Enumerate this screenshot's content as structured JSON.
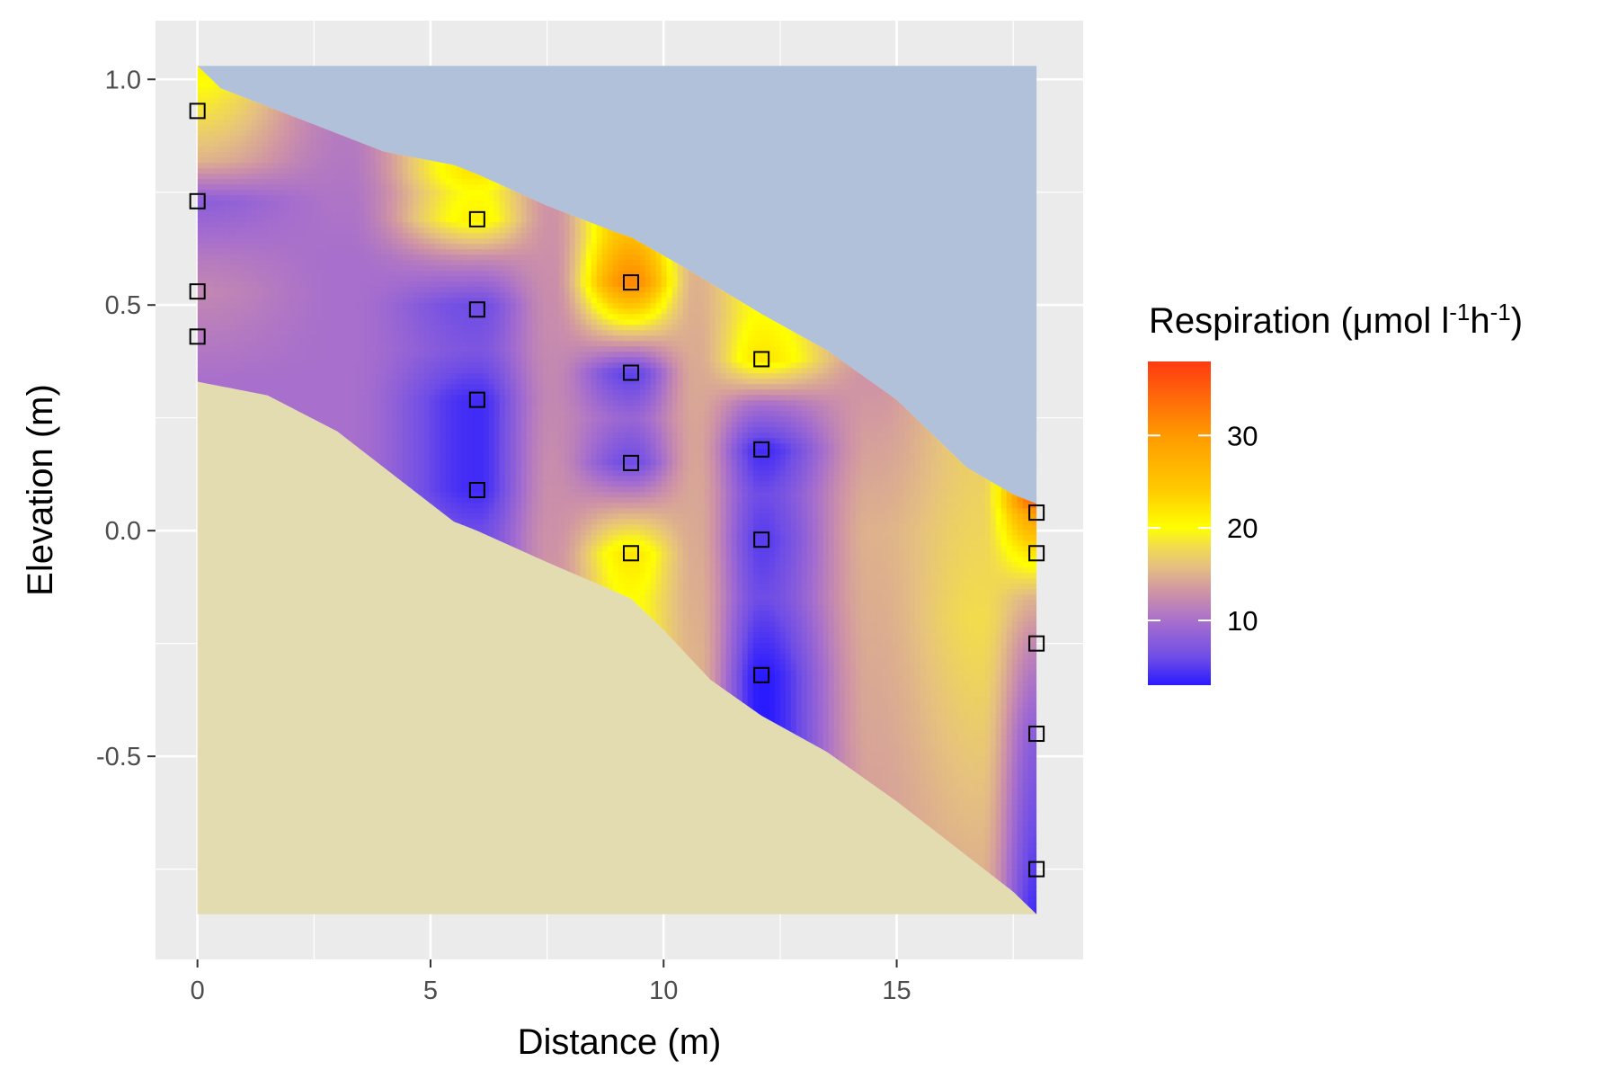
{
  "chart_data": {
    "type": "heatmap",
    "title": "",
    "xlabel": "Distance (m)",
    "ylabel": "Elevation (m)",
    "xlim": [
      -0.9,
      19
    ],
    "ylim": [
      -0.95,
      1.13
    ],
    "x_ticks": [
      0,
      5,
      10,
      15
    ],
    "x_tick_labels": [
      "0",
      "5",
      "10",
      "15"
    ],
    "y_ticks": [
      -0.5,
      0.0,
      0.5,
      1.0
    ],
    "y_tick_labels": [
      "-0.5",
      "0.0",
      "0.5",
      "1.0"
    ],
    "grid": true,
    "legend": {
      "title": "Respiration (μmol l",
      "title_sup1": "-1",
      "title_mid": "h",
      "title_sup2": "-1",
      "title_end": ")",
      "position": "right",
      "range": [
        3,
        38
      ],
      "ticks": [
        10,
        20,
        30
      ],
      "tick_labels": [
        "10",
        "20",
        "30"
      ],
      "colors": [
        [
          3,
          "#2a1bff"
        ],
        [
          6,
          "#6f4de6"
        ],
        [
          10,
          "#a86fcc"
        ],
        [
          13,
          "#cf93a6"
        ],
        [
          16,
          "#e6c27e"
        ],
        [
          18,
          "#f2dc4c"
        ],
        [
          20,
          "#ffff00"
        ],
        [
          24,
          "#ffcc00"
        ],
        [
          30,
          "#ff9a00"
        ],
        [
          38,
          "#ff3a12"
        ]
      ]
    },
    "water_color": "#b0c1d9",
    "sediment_color": "#e3dcb0",
    "panel_color": "#ebebeb",
    "surface_profile": [
      [
        0,
        1.03
      ],
      [
        0.5,
        0.98
      ],
      [
        2,
        0.92
      ],
      [
        4,
        0.84
      ],
      [
        5.5,
        0.81
      ],
      [
        6,
        0.79
      ],
      [
        7.5,
        0.72
      ],
      [
        9,
        0.66
      ],
      [
        9.3,
        0.65
      ],
      [
        10.5,
        0.58
      ],
      [
        12.1,
        0.48
      ],
      [
        13.5,
        0.4
      ],
      [
        15,
        0.29
      ],
      [
        16.5,
        0.14
      ],
      [
        17.5,
        0.08
      ],
      [
        18,
        0.06
      ]
    ],
    "bottom_profile": [
      [
        0,
        0.33
      ],
      [
        1.5,
        0.3
      ],
      [
        3,
        0.22
      ],
      [
        4.5,
        0.1
      ],
      [
        5.5,
        0.02
      ],
      [
        6,
        0.0
      ],
      [
        7.5,
        -0.07
      ],
      [
        9.3,
        -0.15
      ],
      [
        10,
        -0.22
      ],
      [
        11,
        -0.33
      ],
      [
        12.1,
        -0.41
      ],
      [
        13.5,
        -0.49
      ],
      [
        15,
        -0.6
      ],
      [
        16.5,
        -0.72
      ],
      [
        17.5,
        -0.8
      ],
      [
        18,
        -0.85
      ]
    ],
    "plot_bottom": -0.85,
    "plot_top": 1.03,
    "plot_x_max": 18,
    "columns": [
      {
        "x": 0,
        "value_profile": [
          [
            1.03,
            21
          ],
          [
            0.92,
            18
          ],
          [
            0.82,
            15
          ],
          [
            0.73,
            8
          ],
          [
            0.6,
            11
          ],
          [
            0.53,
            12
          ],
          [
            0.43,
            11
          ],
          [
            0.33,
            10
          ]
        ]
      },
      {
        "x": 3.2,
        "value_profile": [
          [
            0.88,
            11
          ],
          [
            0.6,
            10
          ],
          [
            0.3,
            10
          ]
        ]
      },
      {
        "x": 6,
        "value_profile": [
          [
            0.79,
            22
          ],
          [
            0.75,
            20
          ],
          [
            0.69,
            21
          ],
          [
            0.6,
            12
          ],
          [
            0.5,
            6
          ],
          [
            0.4,
            7
          ],
          [
            0.29,
            4
          ],
          [
            0.15,
            4
          ],
          [
            0.09,
            4
          ],
          [
            0.0,
            6
          ]
        ]
      },
      {
        "x": 7.6,
        "value_profile": [
          [
            0.72,
            13
          ],
          [
            0.3,
            12
          ],
          [
            -0.07,
            13
          ]
        ]
      },
      {
        "x": 9.3,
        "value_profile": [
          [
            0.65,
            26
          ],
          [
            0.55,
            32
          ],
          [
            0.45,
            18
          ],
          [
            0.35,
            5
          ],
          [
            0.25,
            9
          ],
          [
            0.15,
            6
          ],
          [
            0.05,
            14
          ],
          [
            -0.05,
            22
          ],
          [
            -0.15,
            20
          ]
        ]
      },
      {
        "x": 10.7,
        "value_profile": [
          [
            0.57,
            15
          ],
          [
            0.2,
            14
          ],
          [
            -0.27,
            15
          ]
        ]
      },
      {
        "x": 12.1,
        "value_profile": [
          [
            0.48,
            20
          ],
          [
            0.38,
            22
          ],
          [
            0.28,
            10
          ],
          [
            0.18,
            4
          ],
          [
            0.08,
            6
          ],
          [
            -0.02,
            5
          ],
          [
            -0.15,
            6
          ],
          [
            -0.32,
            3
          ],
          [
            -0.41,
            3
          ]
        ]
      },
      {
        "x": 14.5,
        "value_profile": [
          [
            0.33,
            13
          ],
          [
            0.0,
            15
          ],
          [
            -0.55,
            14
          ]
        ]
      },
      {
        "x": 16.8,
        "value_profile": [
          [
            0.12,
            17
          ],
          [
            -0.2,
            18
          ],
          [
            -0.74,
            15
          ]
        ]
      },
      {
        "x": 18,
        "value_profile": [
          [
            0.06,
            34
          ],
          [
            0.04,
            30
          ],
          [
            -0.05,
            22
          ],
          [
            -0.15,
            15
          ],
          [
            -0.25,
            12
          ],
          [
            -0.45,
            8
          ],
          [
            -0.75,
            5
          ],
          [
            -0.85,
            4
          ]
        ]
      }
    ],
    "sample_points": [
      [
        0,
        0.93
      ],
      [
        0,
        0.73
      ],
      [
        0,
        0.53
      ],
      [
        0,
        0.43
      ],
      [
        6,
        0.69
      ],
      [
        6,
        0.49
      ],
      [
        6,
        0.29
      ],
      [
        6,
        0.09
      ],
      [
        9.3,
        0.55
      ],
      [
        9.3,
        0.35
      ],
      [
        9.3,
        0.15
      ],
      [
        9.3,
        -0.05
      ],
      [
        12.1,
        0.38
      ],
      [
        12.1,
        0.18
      ],
      [
        12.1,
        -0.02
      ],
      [
        12.1,
        -0.32
      ],
      [
        18,
        0.04
      ],
      [
        18,
        -0.05
      ],
      [
        18,
        -0.25
      ],
      [
        18,
        -0.45
      ],
      [
        18,
        -0.75
      ]
    ]
  }
}
